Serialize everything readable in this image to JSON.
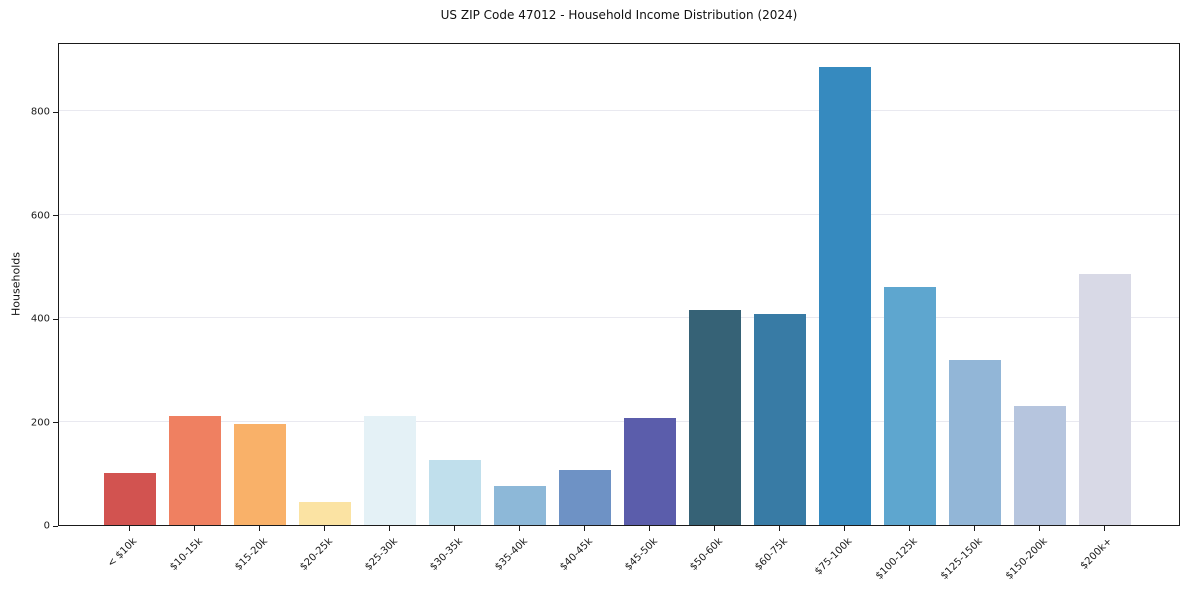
{
  "figure": {
    "title": "US ZIP Code 47012 - Household Income Distribution (2024)"
  },
  "chart_data": {
    "type": "bar",
    "title": "US ZIP Code 47012 - Household Income Distribution (2024)",
    "xlabel": "",
    "ylabel": "Households",
    "categories": [
      "< $10k",
      "$10-15k",
      "$15-20k",
      "$20-25k",
      "$25-30k",
      "$30-35k",
      "$35-40k",
      "$40-45k",
      "$45-50k",
      "$50-60k",
      "$60-75k",
      "$75-100k",
      "$100-125k",
      "$125-150k",
      "$150-200k",
      "$200k+"
    ],
    "values": [
      100,
      210,
      195,
      44,
      210,
      126,
      76,
      106,
      207,
      415,
      408,
      885,
      460,
      320,
      230,
      485
    ],
    "bar_colors": [
      "#d25350",
      "#ef8061",
      "#f9b169",
      "#fbe3a3",
      "#e4f1f6",
      "#c0dfec",
      "#8db8d8",
      "#6e92c5",
      "#5b5dab",
      "#366276",
      "#387ba5",
      "#368abf",
      "#5ea6cf",
      "#92b6d7",
      "#b6c5de",
      "#d8d9e6"
    ],
    "yticks": [
      0,
      200,
      400,
      600,
      800
    ],
    "ylim": [
      0,
      934
    ],
    "grid": "horizontal-only",
    "gridline_color": "#e9e9f0",
    "legend": "none",
    "x_tick_rotation": 45,
    "background_color": "#ffffff"
  }
}
